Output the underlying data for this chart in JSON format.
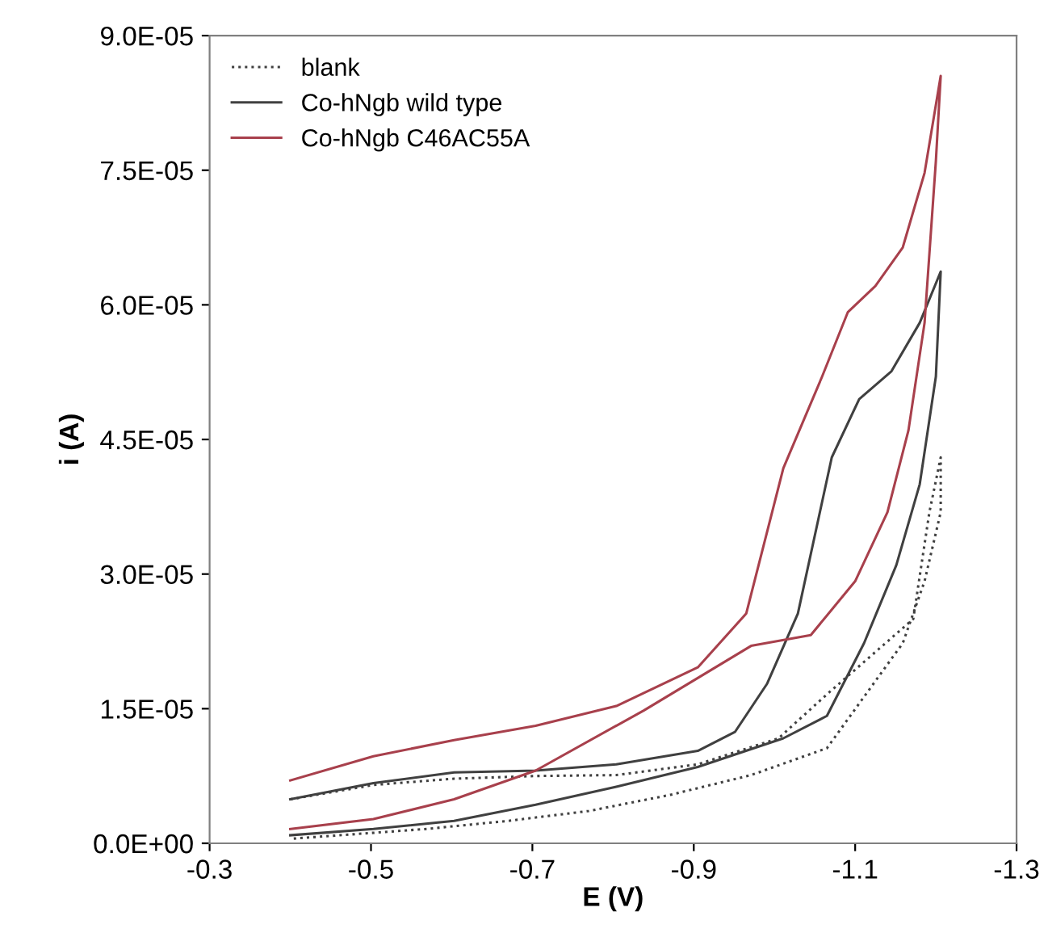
{
  "chart_data": {
    "type": "line",
    "xlabel": "E (V)",
    "ylabel": "i (A)",
    "xlim": [
      -0.3,
      -1.3
    ],
    "xticks": [
      -0.3,
      -0.5,
      -0.7,
      -0.9,
      -1.1,
      -1.3
    ],
    "ylim": [
      0,
      9e-05
    ],
    "yticks": [
      {
        "value": 0,
        "label": "0.0E+00"
      },
      {
        "value": 1.5e-05,
        "label": "1.5E-05"
      },
      {
        "value": 3e-05,
        "label": "3.0E-05"
      },
      {
        "value": 4.5e-05,
        "label": "4.5E-05"
      },
      {
        "value": 6e-05,
        "label": "6.0E-05"
      },
      {
        "value": 7.5e-05,
        "label": "7.5E-05"
      },
      {
        "value": 9e-05,
        "label": "9.0E-05"
      }
    ],
    "grid": false,
    "legend": "top left",
    "series": [
      {
        "name": "blank",
        "color": "#404040",
        "line_style": "dotted",
        "x": [
          -0.4,
          -0.503,
          -0.603,
          -0.704,
          -0.804,
          -0.905,
          -1.005,
          -1.065,
          -1.172,
          -1.192,
          -1.206,
          -1.206,
          -1.186,
          -1.159,
          -1.065,
          -0.971,
          -0.871,
          -0.77,
          -0.67,
          -0.569,
          -0.4
        ],
        "values": [
          4.9e-06,
          6.5e-06,
          7.2e-06,
          7.5e-06,
          7.6e-06,
          8.8e-06,
          1.17e-05,
          1.66e-05,
          2.5e-05,
          3.69e-05,
          4.3e-05,
          3.69e-05,
          2.92e-05,
          2.23e-05,
          1.06e-05,
          7.6e-06,
          5.4e-06,
          3.6e-06,
          2.5e-06,
          1.6e-06,
          5e-07
        ]
      },
      {
        "name": "Co-hNgb wild type",
        "color": "#404040",
        "line_style": "solid",
        "x": [
          -0.4,
          -0.503,
          -0.603,
          -0.704,
          -0.804,
          -0.905,
          -0.951,
          -0.991,
          -1.029,
          -1.071,
          -1.105,
          -1.145,
          -1.18,
          -1.206,
          -1.2,
          -1.18,
          -1.151,
          -1.111,
          -1.065,
          -1.011,
          -0.905,
          -0.804,
          -0.704,
          -0.603,
          -0.503,
          -0.4
        ],
        "values": [
          4.9e-06,
          6.7e-06,
          7.9e-06,
          8.1e-06,
          8.8e-06,
          1.03e-05,
          1.24e-05,
          1.78e-05,
          2.56e-05,
          4.3e-05,
          4.95e-05,
          5.26e-05,
          5.8e-05,
          6.37e-05,
          5.2e-05,
          4e-05,
          3.1e-05,
          2.23e-05,
          1.42e-05,
          1.17e-05,
          8.5e-06,
          6.3e-06,
          4.3e-06,
          2.5e-06,
          1.6e-06,
          9e-07
        ]
      },
      {
        "name": "Co-hNgb C46AC55A",
        "color": "#a8404c",
        "line_style": "solid",
        "x": [
          -0.4,
          -0.503,
          -0.603,
          -0.704,
          -0.804,
          -0.905,
          -0.965,
          -1.011,
          -1.059,
          -1.091,
          -1.125,
          -1.159,
          -1.186,
          -1.206,
          -1.2,
          -1.186,
          -1.166,
          -1.14,
          -1.1,
          -1.045,
          -0.971,
          -0.838,
          -0.704,
          -0.603,
          -0.503,
          -0.4
        ],
        "values": [
          7e-06,
          9.7e-06,
          1.15e-05,
          1.31e-05,
          1.53e-05,
          1.96e-05,
          2.56e-05,
          4.18e-05,
          5.2e-05,
          5.92e-05,
          6.21e-05,
          6.64e-05,
          7.47e-05,
          8.55e-05,
          7.6e-05,
          5.8e-05,
          4.6e-05,
          3.69e-05,
          2.92e-05,
          2.32e-05,
          2.2e-05,
          1.48e-05,
          8.1e-06,
          4.9e-06,
          2.7e-06,
          1.6e-06
        ]
      }
    ]
  }
}
